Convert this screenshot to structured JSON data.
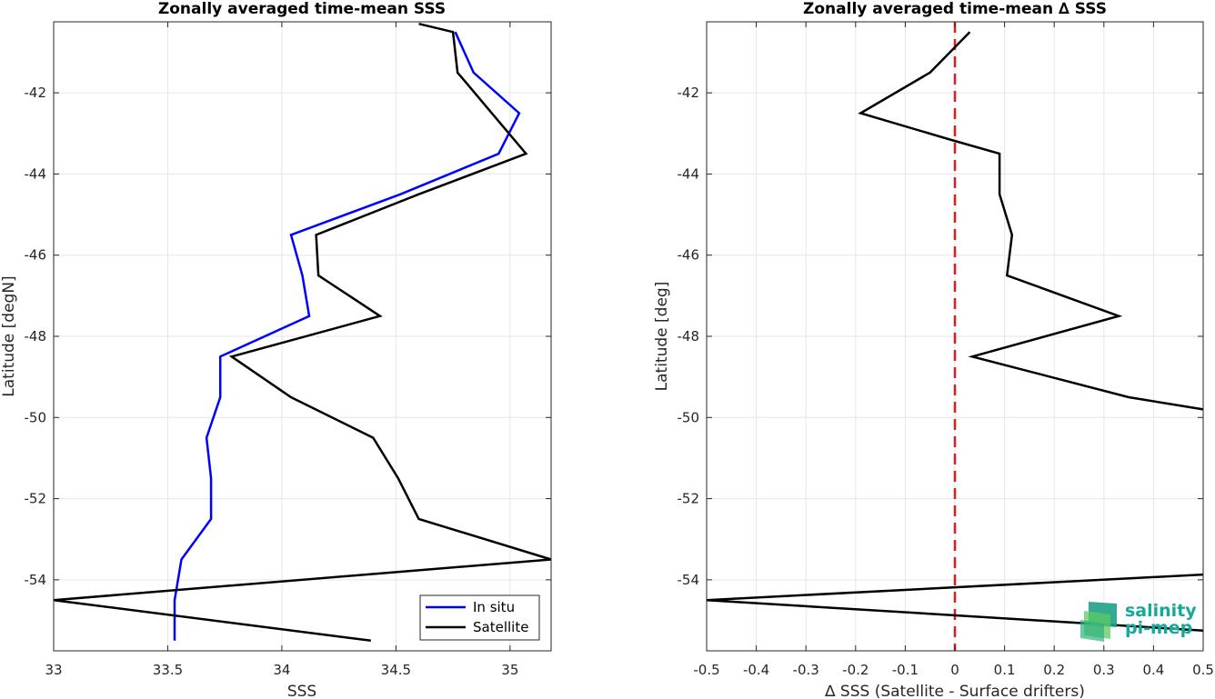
{
  "chart_data": [
    {
      "type": "line",
      "title": "Zonally averaged time-mean SSS",
      "xlabel": "SSS",
      "ylabel": "Latitude [degN]",
      "xlim": [
        33,
        35.18
      ],
      "ylim": [
        -55.75,
        -40.25
      ],
      "xticks": [
        33,
        33.5,
        34,
        34.5,
        35
      ],
      "xtick_labels": [
        "33",
        "33.5",
        "34",
        "34.5",
        "35"
      ],
      "yticks": [
        -54,
        -52,
        -50,
        -48,
        -46,
        -44,
        -42
      ],
      "ytick_labels": [
        "-54",
        "-52",
        "-50",
        "-48",
        "-46",
        "-44",
        "-42"
      ],
      "grid": true,
      "legend": "bottom-right",
      "series": [
        {
          "name": "In situ",
          "color": "#0000ff",
          "points": [
            [
              34.76,
              -40.5
            ],
            [
              34.84,
              -41.5
            ],
            [
              35.04,
              -42.5
            ],
            [
              34.95,
              -43.5
            ],
            [
              34.52,
              -44.5
            ],
            [
              34.04,
              -45.5
            ],
            [
              34.09,
              -46.5
            ],
            [
              34.12,
              -47.5
            ],
            [
              33.73,
              -48.5
            ],
            [
              33.73,
              -49.5
            ],
            [
              33.67,
              -50.5
            ],
            [
              33.69,
              -51.5
            ],
            [
              33.69,
              -52.5
            ],
            [
              33.56,
              -53.5
            ],
            [
              33.53,
              -54.5
            ],
            [
              33.53,
              -55.5
            ]
          ]
        },
        {
          "name": "Satellite",
          "color": "#000000",
          "points": [
            [
              34.6,
              -40.3
            ],
            [
              34.75,
              -40.5
            ],
            [
              34.77,
              -41.5
            ],
            [
              35.07,
              -43.5
            ],
            [
              34.6,
              -44.5
            ],
            [
              34.15,
              -45.5
            ],
            [
              34.16,
              -46.5
            ],
            [
              34.43,
              -47.5
            ],
            [
              33.78,
              -48.5
            ],
            [
              34.04,
              -49.5
            ],
            [
              34.4,
              -50.5
            ],
            [
              34.51,
              -51.5
            ],
            [
              34.6,
              -52.5
            ],
            [
              35.18,
              -53.5
            ],
            [
              33.0,
              -54.5
            ],
            [
              34.39,
              -55.5
            ]
          ]
        }
      ]
    },
    {
      "type": "line",
      "title": "Zonally averaged time-mean ∆ SSS",
      "xlabel": "∆ SSS (Satellite - Surface drifters)",
      "ylabel": "Latitude [deg]",
      "xlim": [
        -0.5,
        0.5
      ],
      "ylim": [
        -55.75,
        -40.25
      ],
      "xticks": [
        -0.5,
        -0.4,
        -0.3,
        -0.2,
        -0.1,
        0,
        0.1,
        0.2,
        0.3,
        0.4,
        0.5
      ],
      "xtick_labels": [
        "-0.5",
        "-0.4",
        "-0.3",
        "-0.2",
        "-0.1",
        "0",
        "0.1",
        "0.2",
        "0.3",
        "0.4",
        "0.5"
      ],
      "yticks": [
        -54,
        -52,
        -50,
        -48,
        -46,
        -44,
        -42
      ],
      "ytick_labels": [
        "-54",
        "-52",
        "-50",
        "-48",
        "-46",
        "-44",
        "-42"
      ],
      "grid": true,
      "zero_line_color": "#e41a1c",
      "series": [
        {
          "color": "#000000",
          "points": [
            [
              0.03,
              -40.5
            ],
            [
              -0.05,
              -41.5
            ],
            [
              -0.19,
              -42.5
            ],
            [
              -0.01,
              -43.15
            ],
            [
              0.09,
              -43.5
            ],
            [
              0.09,
              -44.5
            ],
            [
              0.115,
              -45.5
            ],
            [
              0.105,
              -46.5
            ],
            [
              0.33,
              -47.5
            ],
            [
              0.035,
              -48.5
            ],
            [
              0.35,
              -49.5
            ],
            [
              0.5,
              -49.8
            ]
          ]
        },
        {
          "color": "#000000",
          "points": [
            [
              0.5,
              -53.87
            ],
            [
              -0.5,
              -54.5
            ],
            [
              0.5,
              -55.25
            ]
          ]
        }
      ]
    }
  ],
  "logo": {
    "line1": "salinity",
    "line2": "pi-mep"
  }
}
